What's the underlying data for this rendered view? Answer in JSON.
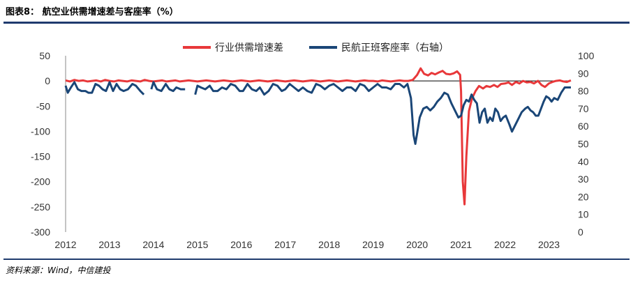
{
  "header": {
    "title": "图表8： 航空业供需增速差与客座率（%）"
  },
  "footer": {
    "source": "资料来源：Wind，中信建投"
  },
  "colors": {
    "red": "#e8383a",
    "navy": "#1a4677",
    "rule": "#1f3b6e"
  },
  "chart_data": {
    "type": "line",
    "x_tick_labels": [
      "2012",
      "2013",
      "2014",
      "2015",
      "2016",
      "2017",
      "2018",
      "2019",
      "2020",
      "2021",
      "2022",
      "2023"
    ],
    "y_left_ticks": [
      "50",
      "0",
      "-50",
      "-100",
      "-150",
      "-200",
      "-250",
      "-300"
    ],
    "y_right_ticks": [
      "100",
      "90",
      "80",
      "70",
      "60",
      "50",
      "40",
      "30",
      "20",
      "10",
      "0"
    ],
    "ylim_left": [
      -300,
      50
    ],
    "ylim_right": [
      0,
      100
    ],
    "xlim": [
      2012.0,
      2023.5
    ],
    "legend_position": "top",
    "series": [
      {
        "name": "行业供需增速差",
        "axis": "left",
        "color": "#e8383a",
        "points": [
          [
            2012.0,
            1
          ],
          [
            2012.1,
            -1
          ],
          [
            2012.2,
            2
          ],
          [
            2012.3,
            0
          ],
          [
            2012.4,
            1
          ],
          [
            2012.5,
            -1
          ],
          [
            2012.6,
            0
          ],
          [
            2012.7,
            1
          ],
          [
            2012.8,
            -1
          ],
          [
            2012.9,
            2
          ],
          [
            2013.0,
            0
          ],
          [
            2013.1,
            -1
          ],
          [
            2013.2,
            1
          ],
          [
            2013.3,
            0
          ],
          [
            2013.4,
            -1
          ],
          [
            2013.5,
            1
          ],
          [
            2013.6,
            0
          ],
          [
            2013.7,
            -1
          ],
          [
            2013.8,
            2
          ],
          [
            2013.9,
            0
          ],
          [
            2014.0,
            -1
          ],
          [
            2014.1,
            0
          ],
          [
            2014.2,
            1
          ],
          [
            2014.3,
            -1
          ],
          [
            2014.4,
            0
          ],
          [
            2014.5,
            1
          ],
          [
            2014.6,
            -1
          ],
          [
            2014.7,
            0
          ],
          [
            2014.8,
            1
          ],
          [
            2014.9,
            0
          ],
          [
            2015.0,
            -1
          ],
          [
            2015.1,
            0
          ],
          [
            2015.2,
            1
          ],
          [
            2015.3,
            0
          ],
          [
            2015.4,
            -1
          ],
          [
            2015.5,
            0
          ],
          [
            2015.6,
            1
          ],
          [
            2015.7,
            0
          ],
          [
            2015.8,
            -1
          ],
          [
            2015.9,
            0
          ],
          [
            2016.0,
            1
          ],
          [
            2016.1,
            0
          ],
          [
            2016.2,
            -1
          ],
          [
            2016.3,
            0
          ],
          [
            2016.4,
            1
          ],
          [
            2016.5,
            0
          ],
          [
            2016.6,
            -1
          ],
          [
            2016.7,
            0
          ],
          [
            2016.8,
            1
          ],
          [
            2016.9,
            0
          ],
          [
            2017.0,
            -1
          ],
          [
            2017.1,
            0
          ],
          [
            2017.2,
            1
          ],
          [
            2017.3,
            0
          ],
          [
            2017.4,
            -1
          ],
          [
            2017.5,
            0
          ],
          [
            2017.6,
            1
          ],
          [
            2017.7,
            0
          ],
          [
            2017.8,
            -1
          ],
          [
            2017.9,
            0
          ],
          [
            2018.0,
            1
          ],
          [
            2018.1,
            0
          ],
          [
            2018.2,
            -1
          ],
          [
            2018.3,
            0
          ],
          [
            2018.4,
            1
          ],
          [
            2018.5,
            0
          ],
          [
            2018.6,
            -1
          ],
          [
            2018.7,
            0
          ],
          [
            2018.8,
            1
          ],
          [
            2018.9,
            0
          ],
          [
            2019.0,
            0
          ],
          [
            2019.1,
            -1
          ],
          [
            2019.2,
            1
          ],
          [
            2019.3,
            0
          ],
          [
            2019.4,
            -1
          ],
          [
            2019.5,
            0
          ],
          [
            2019.6,
            1
          ],
          [
            2019.7,
            0
          ],
          [
            2019.8,
            0
          ],
          [
            2019.9,
            2
          ],
          [
            2020.0,
            12
          ],
          [
            2020.08,
            25
          ],
          [
            2020.16,
            14
          ],
          [
            2020.25,
            11
          ],
          [
            2020.33,
            16
          ],
          [
            2020.41,
            13
          ],
          [
            2020.5,
            17
          ],
          [
            2020.58,
            20
          ],
          [
            2020.66,
            14
          ],
          [
            2020.75,
            13
          ],
          [
            2020.83,
            15
          ],
          [
            2020.91,
            19
          ],
          [
            2020.98,
            12
          ],
          [
            2021.0,
            -20
          ],
          [
            2021.04,
            -200
          ],
          [
            2021.08,
            -245
          ],
          [
            2021.12,
            -150
          ],
          [
            2021.18,
            -60
          ],
          [
            2021.25,
            -35
          ],
          [
            2021.33,
            -20
          ],
          [
            2021.41,
            -10
          ],
          [
            2021.5,
            -15
          ],
          [
            2021.58,
            -10
          ],
          [
            2021.66,
            -12
          ],
          [
            2021.75,
            -8
          ],
          [
            2021.83,
            -12
          ],
          [
            2021.91,
            -6
          ],
          [
            2022.0,
            -5
          ],
          [
            2022.08,
            -3
          ],
          [
            2022.16,
            -8
          ],
          [
            2022.25,
            -2
          ],
          [
            2022.33,
            -5
          ],
          [
            2022.41,
            0
          ],
          [
            2022.5,
            -3
          ],
          [
            2022.58,
            -2
          ],
          [
            2022.66,
            -5
          ],
          [
            2022.75,
            0
          ],
          [
            2022.83,
            -8
          ],
          [
            2022.91,
            -12
          ],
          [
            2023.0,
            -5
          ],
          [
            2023.08,
            -2
          ],
          [
            2023.16,
            0
          ],
          [
            2023.25,
            1
          ],
          [
            2023.33,
            -1
          ],
          [
            2023.41,
            -2
          ],
          [
            2023.5,
            1
          ]
        ]
      },
      {
        "name": "民航正班客座率（右轴）",
        "axis": "right",
        "color": "#1a4677",
        "segments": [
          [
            [
              2012.0,
              83
            ],
            [
              2012.05,
              79
            ],
            [
              2012.12,
              82
            ],
            [
              2012.2,
              85
            ],
            [
              2012.28,
              81
            ],
            [
              2012.36,
              80
            ],
            [
              2012.45,
              80
            ],
            [
              2012.52,
              79
            ],
            [
              2012.6,
              79
            ],
            [
              2012.68,
              84
            ],
            [
              2012.76,
              83
            ],
            [
              2012.84,
              81
            ],
            [
              2012.92,
              80
            ],
            [
              2013.0,
              85
            ],
            [
              2013.08,
              80
            ],
            [
              2013.16,
              84
            ],
            [
              2013.24,
              81
            ],
            [
              2013.32,
              80
            ],
            [
              2013.42,
              81
            ],
            [
              2013.52,
              84
            ],
            [
              2013.6,
              83
            ],
            [
              2013.7,
              80
            ],
            [
              2013.78,
              78
            ]
          ],
          [
            [
              2013.95,
              81
            ],
            [
              2014.0,
              85
            ],
            [
              2014.08,
              81
            ],
            [
              2014.18,
              80
            ],
            [
              2014.28,
              84
            ],
            [
              2014.36,
              81
            ],
            [
              2014.45,
              80
            ],
            [
              2014.52,
              82
            ],
            [
              2014.62,
              81
            ],
            [
              2014.72,
              81
            ]
          ],
          [
            [
              2014.95,
              78
            ],
            [
              2015.0,
              83
            ],
            [
              2015.08,
              82
            ],
            [
              2015.18,
              81
            ],
            [
              2015.28,
              83
            ],
            [
              2015.36,
              80
            ],
            [
              2015.46,
              80
            ],
            [
              2015.56,
              82
            ],
            [
              2015.66,
              81
            ],
            [
              2015.76,
              84
            ],
            [
              2015.86,
              83
            ],
            [
              2015.96,
              80
            ],
            [
              2016.04,
              80
            ],
            [
              2016.14,
              84
            ],
            [
              2016.24,
              81
            ],
            [
              2016.34,
              80
            ],
            [
              2016.42,
              82
            ],
            [
              2016.52,
              78
            ],
            [
              2016.62,
              80
            ],
            [
              2016.72,
              84
            ],
            [
              2016.82,
              83
            ],
            [
              2016.92,
              80
            ],
            [
              2017.0,
              81
            ],
            [
              2017.1,
              84
            ],
            [
              2017.2,
              82
            ],
            [
              2017.3,
              80
            ],
            [
              2017.4,
              82
            ],
            [
              2017.5,
              80
            ],
            [
              2017.6,
              79
            ],
            [
              2017.7,
              84
            ],
            [
              2017.8,
              83
            ],
            [
              2017.9,
              81
            ],
            [
              2018.0,
              83
            ],
            [
              2018.1,
              84
            ],
            [
              2018.2,
              82
            ],
            [
              2018.3,
              80
            ],
            [
              2018.4,
              82
            ],
            [
              2018.5,
              82
            ],
            [
              2018.6,
              80
            ],
            [
              2018.7,
              84
            ],
            [
              2018.8,
              83
            ],
            [
              2018.9,
              80
            ],
            [
              2019.0,
              82
            ],
            [
              2019.1,
              84
            ],
            [
              2019.2,
              82
            ],
            [
              2019.3,
              82
            ],
            [
              2019.4,
              81
            ],
            [
              2019.5,
              84
            ],
            [
              2019.6,
              84
            ],
            [
              2019.7,
              82
            ],
            [
              2019.78,
              84
            ],
            [
              2019.86,
              76
            ],
            [
              2019.92,
              55
            ],
            [
              2019.96,
              50
            ],
            [
              2020.0,
              56
            ],
            [
              2020.06,
              65
            ],
            [
              2020.14,
              70
            ],
            [
              2020.22,
              71
            ],
            [
              2020.3,
              69
            ],
            [
              2020.38,
              71
            ],
            [
              2020.46,
              74
            ],
            [
              2020.54,
              76
            ],
            [
              2020.62,
              79
            ],
            [
              2020.7,
              78
            ],
            [
              2020.78,
              73
            ],
            [
              2020.86,
              69
            ],
            [
              2020.94,
              65
            ],
            [
              2021.0,
              66
            ],
            [
              2021.06,
              72
            ],
            [
              2021.12,
              75
            ],
            [
              2021.18,
              74
            ],
            [
              2021.24,
              78
            ],
            [
              2021.3,
              75
            ],
            [
              2021.36,
              73
            ],
            [
              2021.42,
              62
            ],
            [
              2021.48,
              68
            ],
            [
              2021.54,
              70
            ],
            [
              2021.6,
              62
            ],
            [
              2021.66,
              65
            ],
            [
              2021.72,
              63
            ],
            [
              2021.78,
              70
            ],
            [
              2021.84,
              68
            ],
            [
              2021.9,
              63
            ],
            [
              2021.96,
              65
            ],
            [
              2022.02,
              66
            ],
            [
              2022.1,
              61
            ],
            [
              2022.16,
              57
            ],
            [
              2022.22,
              60
            ],
            [
              2022.3,
              64
            ],
            [
              2022.38,
              68
            ],
            [
              2022.46,
              70
            ],
            [
              2022.52,
              71
            ],
            [
              2022.58,
              69
            ],
            [
              2022.64,
              68
            ],
            [
              2022.7,
              66
            ],
            [
              2022.76,
              66
            ],
            [
              2022.82,
              70
            ],
            [
              2022.88,
              74
            ],
            [
              2022.94,
              77
            ],
            [
              2023.0,
              76
            ],
            [
              2023.06,
              74
            ],
            [
              2023.12,
              76
            ],
            [
              2023.2,
              75
            ],
            [
              2023.28,
              79
            ],
            [
              2023.36,
              82
            ],
            [
              2023.44,
              82
            ],
            [
              2023.5,
              82
            ]
          ]
        ]
      }
    ]
  }
}
